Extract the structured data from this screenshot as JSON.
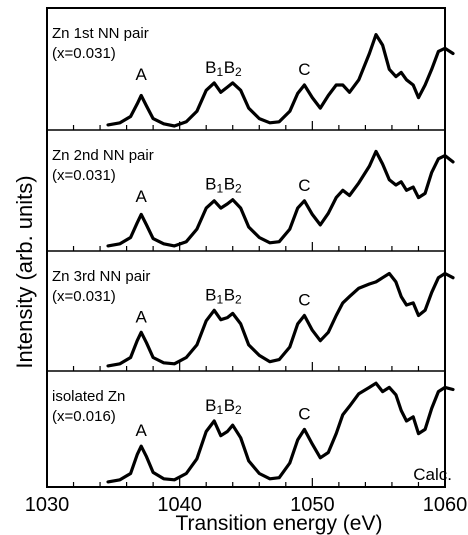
{
  "chart_data": {
    "type": "line",
    "xlabel": "Transition energy (eV)",
    "ylabel": "Intensity (arb. units)",
    "xlim": [
      1030,
      1060
    ],
    "x_ticks": [
      1030,
      1040,
      1050,
      1060
    ],
    "corner_label": "Calc.",
    "panels": [
      {
        "label_line1": "Zn 1st NN pair",
        "label_line2": "(x=0.031)",
        "peak_labels": {
          "A": "A",
          "B1": "B1",
          "B2": "B2",
          "C": "C"
        },
        "peak_energies": {
          "A": 1037.1,
          "B1": 1042.6,
          "B2": 1044.0,
          "C": 1049.4
        },
        "points": [
          [
            1034.6,
            0.02
          ],
          [
            1035.5,
            0.04
          ],
          [
            1036.3,
            0.1
          ],
          [
            1036.8,
            0.22
          ],
          [
            1037.1,
            0.3
          ],
          [
            1037.5,
            0.2
          ],
          [
            1038.0,
            0.08
          ],
          [
            1038.8,
            0.03
          ],
          [
            1039.6,
            0.01
          ],
          [
            1040.5,
            0.05
          ],
          [
            1041.3,
            0.15
          ],
          [
            1042.0,
            0.35
          ],
          [
            1042.6,
            0.42
          ],
          [
            1043.1,
            0.33
          ],
          [
            1043.6,
            0.38
          ],
          [
            1044.0,
            0.42
          ],
          [
            1044.6,
            0.35
          ],
          [
            1045.2,
            0.18
          ],
          [
            1046.0,
            0.08
          ],
          [
            1046.8,
            0.04
          ],
          [
            1047.5,
            0.05
          ],
          [
            1048.3,
            0.15
          ],
          [
            1048.9,
            0.32
          ],
          [
            1049.4,
            0.4
          ],
          [
            1050.0,
            0.28
          ],
          [
            1050.6,
            0.18
          ],
          [
            1051.2,
            0.3
          ],
          [
            1051.8,
            0.4
          ],
          [
            1052.3,
            0.4
          ],
          [
            1052.8,
            0.33
          ],
          [
            1053.5,
            0.45
          ],
          [
            1054.3,
            0.7
          ],
          [
            1054.8,
            0.88
          ],
          [
            1055.3,
            0.78
          ],
          [
            1055.8,
            0.55
          ],
          [
            1056.3,
            0.48
          ],
          [
            1056.7,
            0.52
          ],
          [
            1057.1,
            0.45
          ],
          [
            1057.6,
            0.4
          ],
          [
            1058.0,
            0.28
          ],
          [
            1058.5,
            0.4
          ],
          [
            1059.0,
            0.55
          ],
          [
            1059.5,
            0.72
          ],
          [
            1060.0,
            0.75
          ],
          [
            1060.6,
            0.7
          ]
        ]
      },
      {
        "label_line1": "Zn 2nd NN pair",
        "label_line2": "(x=0.031)",
        "peak_labels": {
          "A": "A",
          "B1": "B1",
          "B2": "B2",
          "C": "C"
        },
        "peak_energies": {
          "A": 1037.1,
          "B1": 1042.6,
          "B2": 1044.0,
          "C": 1049.4
        },
        "points": [
          [
            1034.6,
            0.02
          ],
          [
            1035.5,
            0.04
          ],
          [
            1036.3,
            0.1
          ],
          [
            1036.8,
            0.24
          ],
          [
            1037.1,
            0.32
          ],
          [
            1037.5,
            0.22
          ],
          [
            1038.0,
            0.09
          ],
          [
            1038.8,
            0.04
          ],
          [
            1039.6,
            0.02
          ],
          [
            1040.5,
            0.06
          ],
          [
            1041.3,
            0.18
          ],
          [
            1042.0,
            0.38
          ],
          [
            1042.6,
            0.45
          ],
          [
            1043.1,
            0.38
          ],
          [
            1043.6,
            0.42
          ],
          [
            1044.0,
            0.46
          ],
          [
            1044.6,
            0.38
          ],
          [
            1045.2,
            0.2
          ],
          [
            1046.0,
            0.1
          ],
          [
            1046.8,
            0.05
          ],
          [
            1047.5,
            0.06
          ],
          [
            1048.3,
            0.18
          ],
          [
            1048.9,
            0.38
          ],
          [
            1049.4,
            0.45
          ],
          [
            1050.0,
            0.32
          ],
          [
            1050.6,
            0.22
          ],
          [
            1051.2,
            0.33
          ],
          [
            1051.8,
            0.48
          ],
          [
            1052.3,
            0.55
          ],
          [
            1052.8,
            0.5
          ],
          [
            1053.5,
            0.62
          ],
          [
            1054.3,
            0.78
          ],
          [
            1054.8,
            0.92
          ],
          [
            1055.3,
            0.8
          ],
          [
            1055.8,
            0.65
          ],
          [
            1056.3,
            0.6
          ],
          [
            1056.7,
            0.63
          ],
          [
            1057.1,
            0.55
          ],
          [
            1057.6,
            0.58
          ],
          [
            1058.0,
            0.48
          ],
          [
            1058.5,
            0.52
          ],
          [
            1059.0,
            0.72
          ],
          [
            1059.5,
            0.85
          ],
          [
            1060.0,
            0.88
          ],
          [
            1060.6,
            0.82
          ]
        ]
      },
      {
        "label_line1": "Zn 3rd NN pair",
        "label_line2": "(x=0.031)",
        "peak_labels": {
          "A": "A",
          "B1": "B1",
          "B2": "B2",
          "C": "C"
        },
        "peak_energies": {
          "A": 1037.1,
          "B1": 1042.6,
          "B2": 1044.0,
          "C": 1049.4
        },
        "points": [
          [
            1034.6,
            0.02
          ],
          [
            1035.5,
            0.04
          ],
          [
            1036.3,
            0.1
          ],
          [
            1036.8,
            0.26
          ],
          [
            1037.1,
            0.34
          ],
          [
            1037.5,
            0.24
          ],
          [
            1038.0,
            0.1
          ],
          [
            1038.8,
            0.05
          ],
          [
            1039.6,
            0.04
          ],
          [
            1040.5,
            0.1
          ],
          [
            1041.3,
            0.22
          ],
          [
            1042.0,
            0.45
          ],
          [
            1042.6,
            0.55
          ],
          [
            1043.1,
            0.46
          ],
          [
            1043.6,
            0.48
          ],
          [
            1044.0,
            0.52
          ],
          [
            1044.6,
            0.42
          ],
          [
            1045.2,
            0.22
          ],
          [
            1046.0,
            0.12
          ],
          [
            1046.8,
            0.06
          ],
          [
            1047.5,
            0.08
          ],
          [
            1048.3,
            0.2
          ],
          [
            1048.9,
            0.42
          ],
          [
            1049.4,
            0.5
          ],
          [
            1050.0,
            0.36
          ],
          [
            1050.6,
            0.26
          ],
          [
            1051.2,
            0.34
          ],
          [
            1051.8,
            0.5
          ],
          [
            1052.3,
            0.62
          ],
          [
            1052.8,
            0.68
          ],
          [
            1053.5,
            0.76
          ],
          [
            1054.3,
            0.8
          ],
          [
            1054.8,
            0.82
          ],
          [
            1055.3,
            0.86
          ],
          [
            1055.8,
            0.9
          ],
          [
            1056.3,
            0.82
          ],
          [
            1056.7,
            0.68
          ],
          [
            1057.1,
            0.6
          ],
          [
            1057.6,
            0.62
          ],
          [
            1058.0,
            0.5
          ],
          [
            1058.5,
            0.55
          ],
          [
            1059.0,
            0.72
          ],
          [
            1059.5,
            0.86
          ],
          [
            1060.0,
            0.9
          ],
          [
            1060.6,
            0.86
          ]
        ]
      },
      {
        "label_line1": "isolated Zn",
        "label_line2": "(x=0.016)",
        "peak_labels": {
          "A": "A",
          "B1": "B1",
          "B2": "B2",
          "C": "C"
        },
        "peak_energies": {
          "A": 1037.1,
          "B1": 1042.6,
          "B2": 1044.0,
          "C": 1049.4
        },
        "points": [
          [
            1034.6,
            0.02
          ],
          [
            1035.5,
            0.04
          ],
          [
            1036.3,
            0.1
          ],
          [
            1036.8,
            0.28
          ],
          [
            1037.1,
            0.36
          ],
          [
            1037.5,
            0.26
          ],
          [
            1038.0,
            0.11
          ],
          [
            1038.8,
            0.05
          ],
          [
            1039.6,
            0.04
          ],
          [
            1040.5,
            0.1
          ],
          [
            1041.3,
            0.24
          ],
          [
            1042.0,
            0.5
          ],
          [
            1042.6,
            0.6
          ],
          [
            1043.1,
            0.46
          ],
          [
            1043.6,
            0.5
          ],
          [
            1044.0,
            0.56
          ],
          [
            1044.6,
            0.44
          ],
          [
            1045.2,
            0.22
          ],
          [
            1046.0,
            0.1
          ],
          [
            1046.8,
            0.05
          ],
          [
            1047.5,
            0.06
          ],
          [
            1048.3,
            0.2
          ],
          [
            1048.9,
            0.42
          ],
          [
            1049.4,
            0.52
          ],
          [
            1050.0,
            0.38
          ],
          [
            1050.6,
            0.25
          ],
          [
            1051.2,
            0.3
          ],
          [
            1051.8,
            0.48
          ],
          [
            1052.3,
            0.66
          ],
          [
            1052.8,
            0.74
          ],
          [
            1053.5,
            0.86
          ],
          [
            1054.3,
            0.92
          ],
          [
            1054.8,
            0.96
          ],
          [
            1055.3,
            0.88
          ],
          [
            1055.8,
            0.92
          ],
          [
            1056.3,
            0.85
          ],
          [
            1056.7,
            0.7
          ],
          [
            1057.1,
            0.6
          ],
          [
            1057.6,
            0.64
          ],
          [
            1058.0,
            0.48
          ],
          [
            1058.5,
            0.52
          ],
          [
            1059.0,
            0.72
          ],
          [
            1059.5,
            0.88
          ],
          [
            1060.0,
            0.92
          ],
          [
            1060.6,
            0.9
          ]
        ]
      }
    ]
  }
}
